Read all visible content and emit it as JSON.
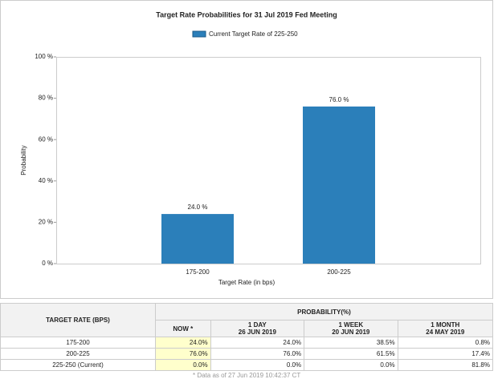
{
  "chart_data": {
    "type": "bar",
    "title": "Target Rate Probabilities for 31 Jul 2019 Fed Meeting",
    "x_label": "Target Rate (in bps)",
    "y_label": "Probability",
    "categories": [
      "175-200",
      "200-225"
    ],
    "series": [
      {
        "name": "Current Target Rate of 225-250",
        "color": "#2b7fba",
        "values": [
          24.0,
          76.0
        ],
        "value_labels": [
          "24.0 %",
          "76.0 %"
        ]
      }
    ],
    "ylim": [
      0,
      100
    ],
    "yticks": [
      {
        "value": 0,
        "label": "0 %"
      },
      {
        "value": 20,
        "label": "20 %"
      },
      {
        "value": 40,
        "label": "40 %"
      },
      {
        "value": 60,
        "label": "60 %"
      },
      {
        "value": 80,
        "label": "80 %"
      },
      {
        "value": 100,
        "label": "100 %"
      }
    ],
    "legend": "top"
  },
  "table": {
    "header": "TARGET RATE (BPS)",
    "group": "PROBABILITY(%)",
    "columns": [
      {
        "label": "NOW *"
      },
      {
        "label": "1 DAY",
        "date": "26 JUN 2019"
      },
      {
        "label": "1 WEEK",
        "date": "20 JUN 2019"
      },
      {
        "label": "1 MONTH",
        "date": "24 MAY 2019"
      }
    ],
    "rows": [
      [
        "175-200",
        "24.0%",
        "24.0%",
        "38.5%",
        "0.8%"
      ],
      [
        "200-225",
        "76.0%",
        "76.0%",
        "61.5%",
        "17.4%"
      ],
      [
        "225-250 (Current)",
        "0.0%",
        "0.0%",
        "0.0%",
        "81.8%"
      ]
    ],
    "footnote": "* Data as of 27 Jun 2019 10:42:37 CT"
  }
}
